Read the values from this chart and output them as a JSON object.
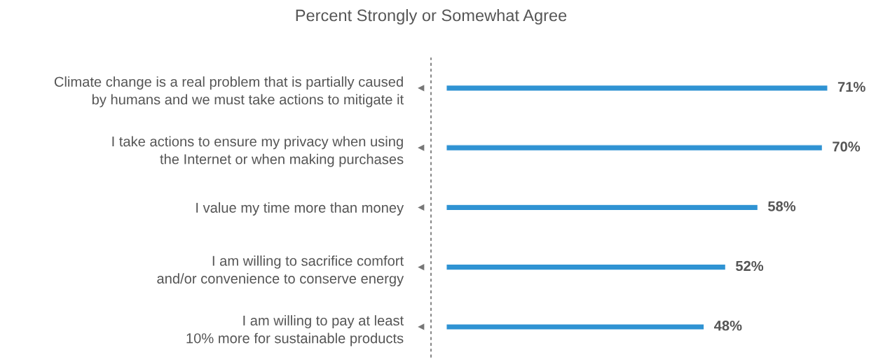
{
  "chart_data": {
    "type": "bar",
    "orientation": "horizontal",
    "title": "Percent Strongly or Somewhat Agree",
    "categories": [
      "Climate change is a real problem that is partially caused\nby humans and we must take actions to mitigate it",
      "I take actions to ensure my privacy when using\nthe Internet or when making purchases",
      "I value my time more than money",
      "I am willing to sacrifice comfort\nand/or convenience to conserve energy",
      "I am willing to pay at least\n10% more for sustainable products"
    ],
    "values": [
      71,
      70,
      58,
      52,
      48
    ],
    "value_labels": [
      "71%",
      "70%",
      "58%",
      "52%",
      "48%"
    ],
    "color": "#2f93d3",
    "grid": false,
    "legend": false
  }
}
